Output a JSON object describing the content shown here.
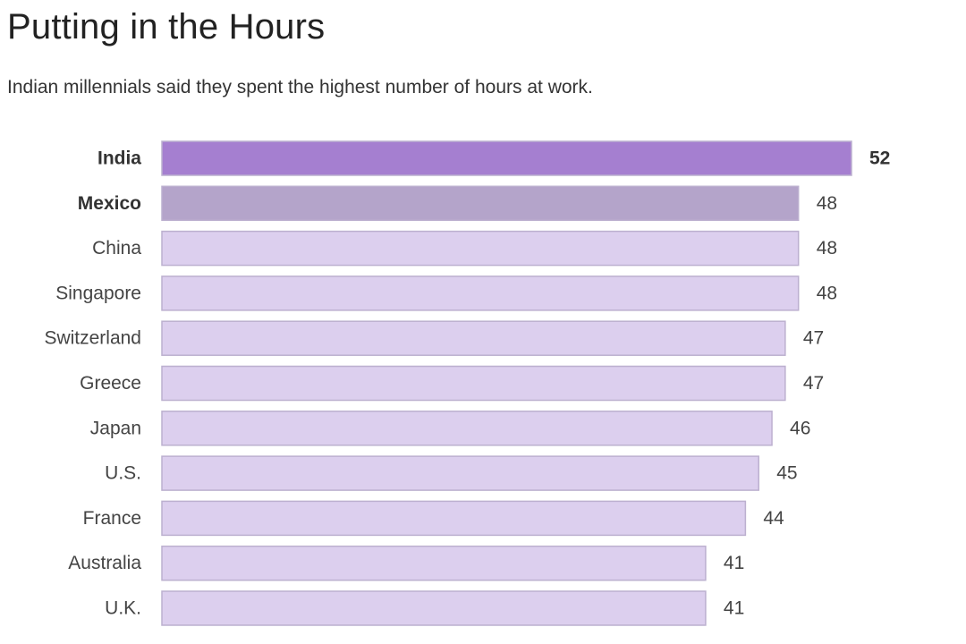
{
  "chart_data": {
    "type": "bar",
    "orientation": "horizontal",
    "title": "Putting in the Hours",
    "subtitle": "Indian millennials said they spent the highest number of hours at work.",
    "categories": [
      "India",
      "Mexico",
      "China",
      "Singapore",
      "Switzerland",
      "Greece",
      "Japan",
      "U.S.",
      "France",
      "Australia",
      "U.K."
    ],
    "values": [
      52,
      48,
      48,
      48,
      47,
      47,
      46,
      45,
      44,
      41,
      41
    ],
    "value_labels": [
      "52",
      "48",
      "48",
      "48",
      "47",
      "47",
      "46",
      "45",
      "44",
      "41",
      "41"
    ],
    "highlighted": [
      "India",
      "Mexico"
    ],
    "colors": {
      "India": "#a57fd0",
      "Mexico": "#b4a4ca",
      "default": "#dccfee",
      "border": "#bcb0cf"
    },
    "xlim": [
      0,
      52
    ],
    "grid": false,
    "legend": "none"
  }
}
